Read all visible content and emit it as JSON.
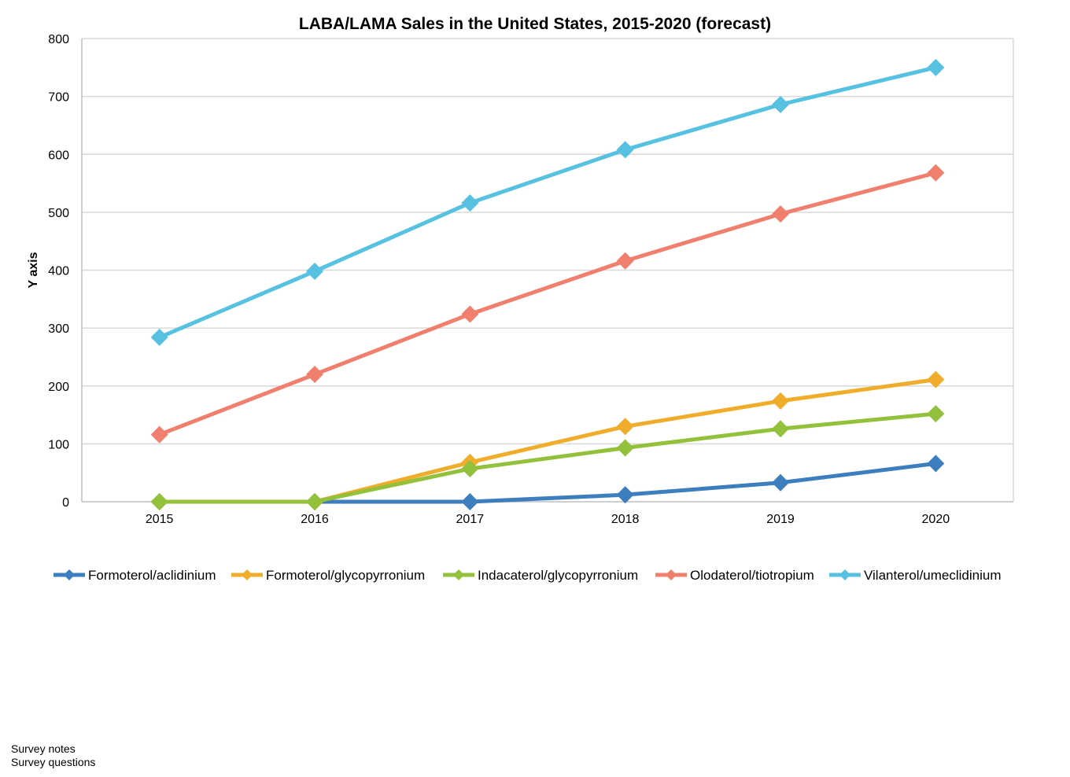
{
  "chart_data": {
    "type": "line",
    "title": "LABA/LAMA Sales in the United States, 2015-2020  (forecast)",
    "xlabel": "",
    "ylabel": "Y axis",
    "ylim": [
      0,
      800
    ],
    "yticks": [
      "0",
      "100",
      "200",
      "300",
      "400",
      "500",
      "600",
      "700",
      "800"
    ],
    "categories": [
      "2015",
      "2016",
      "2017",
      "2018",
      "2019",
      "2020"
    ],
    "grid": true,
    "legend_position": "bottom",
    "series": [
      {
        "name": "Formoterol/aclidinium",
        "color": "#3d7ebf",
        "values": [
          0,
          0,
          0,
          12,
          33,
          66
        ]
      },
      {
        "name": "Formoterol/glycopyrronium",
        "color": "#f0ad2c",
        "values": [
          0,
          0,
          68,
          130,
          174,
          211
        ]
      },
      {
        "name": "Indacaterol/glycopyrronium",
        "color": "#93c13b",
        "values": [
          0,
          0,
          57,
          93,
          126,
          152
        ]
      },
      {
        "name": "Olodaterol/tiotropium",
        "color": "#f07f6e",
        "values": [
          116,
          220,
          324,
          416,
          497,
          568
        ]
      },
      {
        "name": "Vilanterol/umeclidinium",
        "color": "#57c1e1",
        "values": [
          284,
          398,
          516,
          608,
          686,
          750
        ]
      }
    ]
  },
  "notes": {
    "line1": "Survey  notes",
    "line2": "Survey  questions"
  }
}
